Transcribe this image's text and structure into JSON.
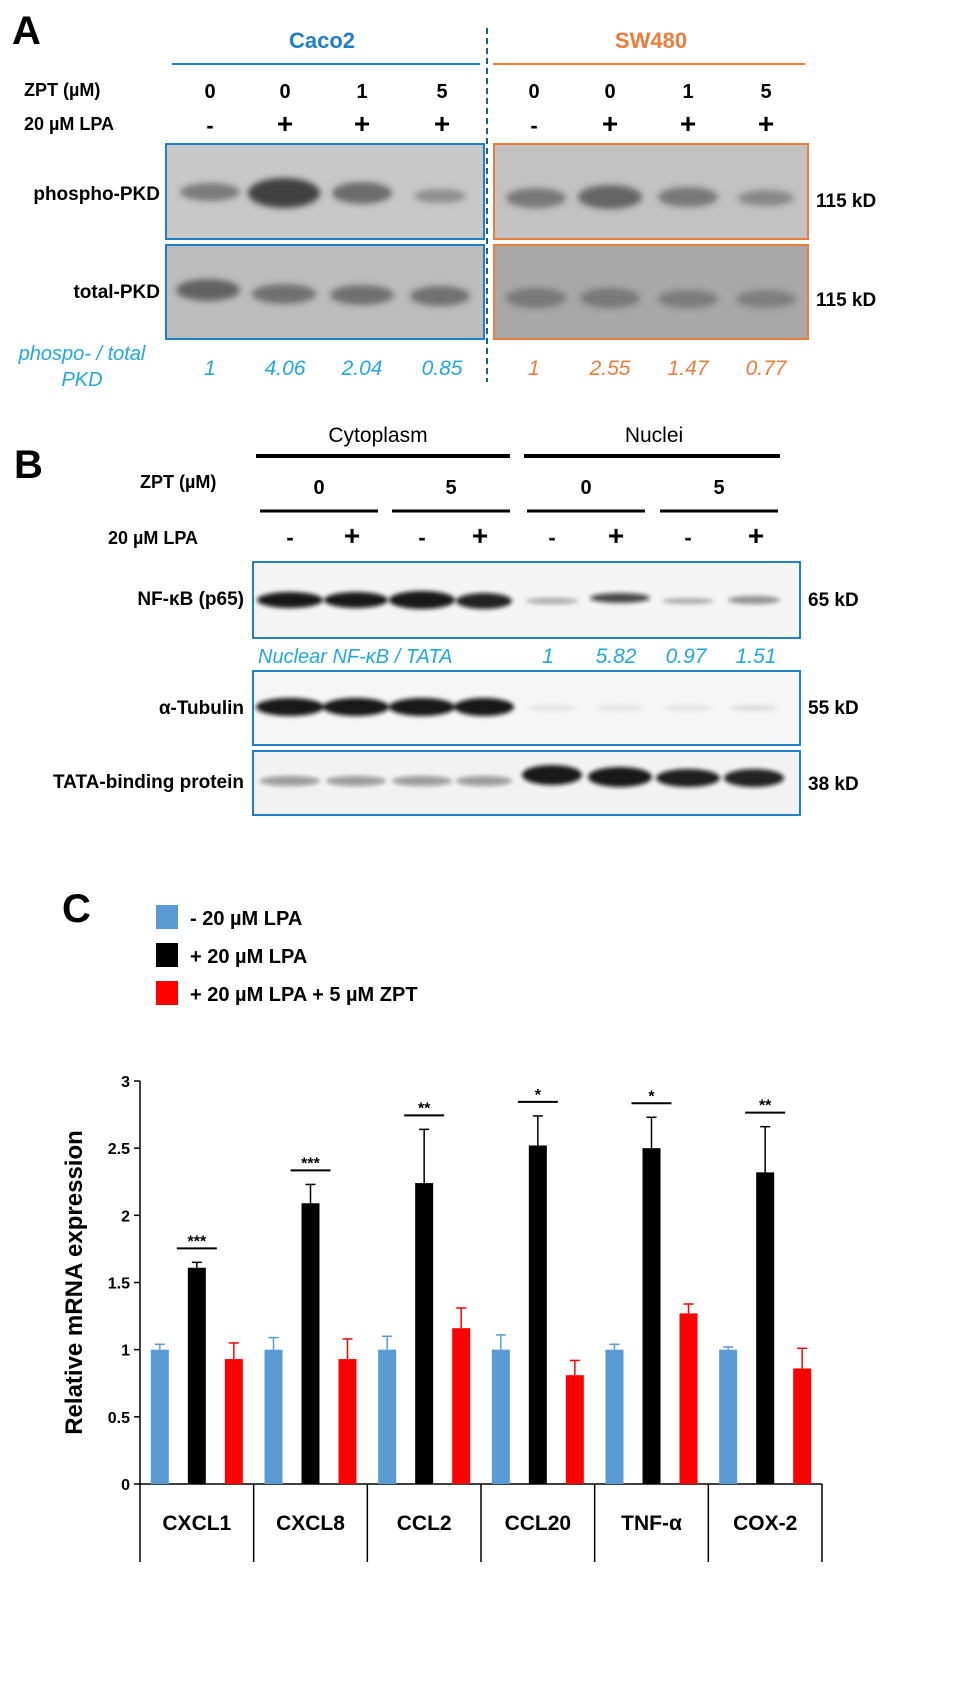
{
  "panel_a": {
    "letter": "A",
    "groups": [
      {
        "name": "Caco2",
        "color": "#1f7fc8"
      },
      {
        "name": "SW480",
        "color": "#ee7b3a"
      }
    ],
    "zpt_label": "ZPT (µM)",
    "lpa_label": "20 µM LPA",
    "zpt_values": [
      "0",
      "0",
      "1",
      "5",
      "0",
      "0",
      "1",
      "5"
    ],
    "lpa_values": [
      "-",
      "+",
      "+",
      "+",
      "-",
      "+",
      "+",
      "+"
    ],
    "blots": [
      {
        "label": "phospho-PKD",
        "size": "115 kD"
      },
      {
        "label": "total-PKD",
        "size": "115 kD"
      }
    ],
    "ratio_label": [
      "phospo- / total",
      "PKD"
    ],
    "ratio_values": [
      "1",
      "4.06",
      "2.04",
      "0.85",
      "1",
      "2.55",
      "1.47",
      "0.77"
    ],
    "ratio_colors": [
      "#20a7e0",
      "#ee7b3a"
    ]
  },
  "panel_b": {
    "letter": "B",
    "fractions": [
      "Cytoplasm",
      "Nuclei"
    ],
    "zpt_label": "ZPT (µM)",
    "zpt_values": [
      "0",
      "5",
      "0",
      "5"
    ],
    "lpa_label": "20 µM LPA",
    "lpa_values": [
      "-",
      "+",
      "-",
      "+",
      "-",
      "+",
      "-",
      "+"
    ],
    "blots": [
      {
        "label": "NF-κB (p65)",
        "size": "65 kD"
      },
      {
        "label": "α-Tubulin",
        "size": "55 kD"
      },
      {
        "label": "TATA-binding protein",
        "size": "38 kD"
      }
    ],
    "ratio_label": "Nuclear NF-κB / TATA",
    "ratio_values": [
      "1",
      "5.82",
      "0.97",
      "1.51"
    ],
    "ratio_color": "#20a7e0",
    "frame_color": "#1f7fc8"
  },
  "panel_c": {
    "letter": "C",
    "legend": [
      {
        "label": " - 20 µM LPA",
        "color": "#5b9bd5"
      },
      {
        "label": "+ 20 µM LPA",
        "color": "#000000"
      },
      {
        "label": "+ 20 µM LPA + 5 µM ZPT",
        "color": "#ff0000"
      }
    ]
  },
  "chart_data": {
    "type": "bar",
    "title": "",
    "xlabel": "",
    "ylabel": "Relative mRNA expression",
    "ylim": [
      0,
      3
    ],
    "yticks": [
      "0",
      "0.5",
      "1",
      "1.5",
      "2",
      "2.5",
      "3"
    ],
    "categories": [
      "CXCL1",
      "CXCL8",
      "CCL2",
      "CCL20",
      "TNF-α",
      "COX-2"
    ],
    "series": [
      {
        "name": " - 20 µM LPA",
        "color": "#5b9bd5",
        "values": [
          1.0,
          1.0,
          1.0,
          1.0,
          1.0,
          1.0
        ],
        "errors": [
          0.04,
          0.09,
          0.1,
          0.11,
          0.04,
          0.02
        ]
      },
      {
        "name": "+ 20 µM LPA",
        "color": "#000000",
        "values": [
          1.61,
          2.09,
          2.24,
          2.52,
          2.5,
          2.32
        ],
        "errors": [
          0.04,
          0.14,
          0.4,
          0.22,
          0.23,
          0.34
        ]
      },
      {
        "name": "+ 20 µM LPA + 5 µM ZPT",
        "color": "#ff0000",
        "values": [
          0.93,
          0.93,
          1.16,
          0.81,
          1.27,
          0.86
        ],
        "errors": [
          0.12,
          0.15,
          0.15,
          0.11,
          0.07,
          0.15
        ]
      }
    ],
    "significance": [
      "***",
      "***",
      "**",
      "*",
      "*",
      "**"
    ],
    "grid": false,
    "legend_position": "top-left"
  }
}
